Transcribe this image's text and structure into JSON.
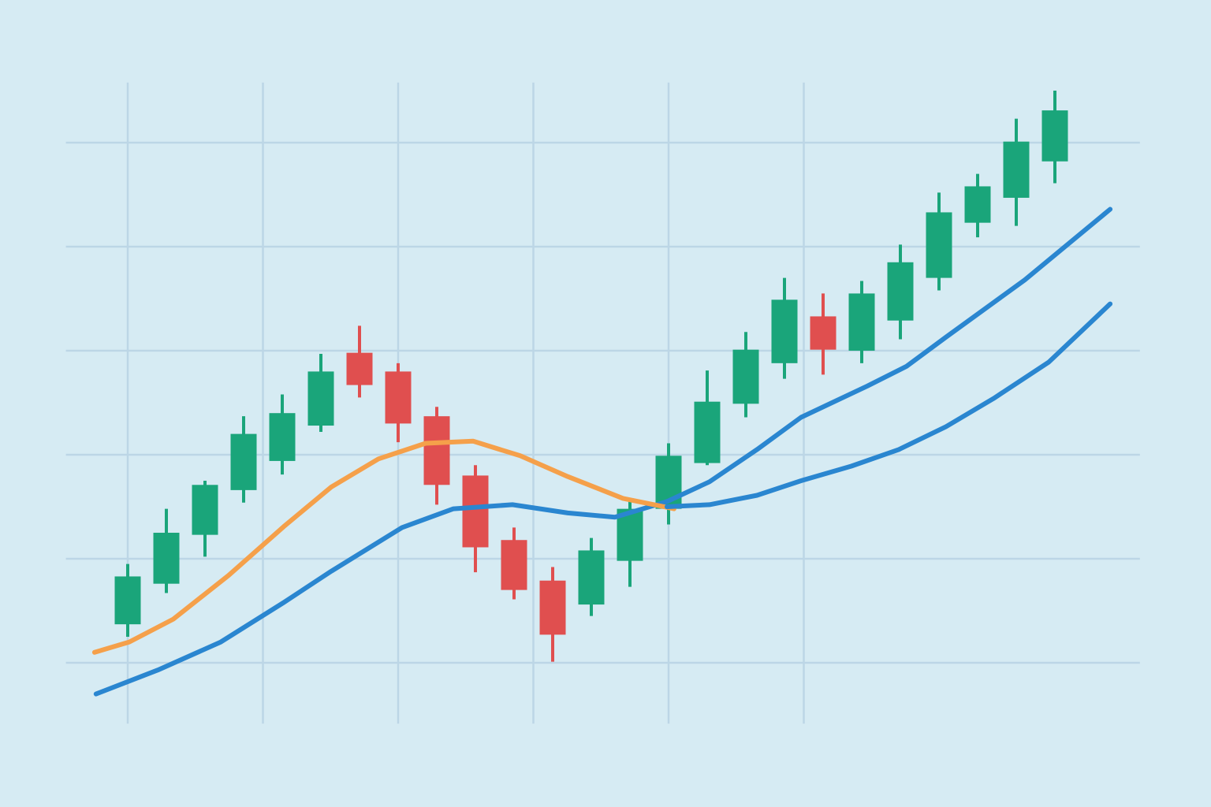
{
  "chart_data": {
    "type": "candlestick",
    "x": [
      0,
      1,
      2,
      3,
      4,
      5,
      6,
      7,
      8,
      9,
      10,
      11,
      12,
      13,
      14,
      15,
      16,
      17,
      18,
      19,
      20,
      21,
      22,
      23,
      24
    ],
    "open": [
      0.37,
      0.76,
      1.23,
      1.66,
      1.94,
      2.28,
      2.98,
      2.8,
      2.37,
      1.8,
      1.18,
      0.79,
      0.56,
      0.98,
      1.48,
      1.92,
      2.49,
      2.88,
      3.33,
      3.0,
      3.29,
      3.7,
      4.23,
      4.47,
      4.82
    ],
    "high": [
      0.95,
      1.48,
      1.75,
      2.37,
      2.58,
      2.97,
      3.24,
      2.88,
      2.46,
      1.9,
      1.3,
      0.92,
      1.2,
      1.58,
      2.11,
      2.81,
      3.18,
      3.7,
      3.55,
      3.67,
      4.02,
      4.52,
      4.7,
      5.23,
      5.5
    ],
    "low": [
      0.25,
      0.67,
      1.02,
      1.54,
      1.81,
      2.22,
      2.55,
      2.12,
      1.52,
      0.87,
      0.61,
      0.01,
      0.45,
      0.73,
      1.33,
      1.9,
      2.36,
      2.73,
      2.77,
      2.88,
      3.11,
      3.58,
      4.09,
      4.2,
      4.61
    ],
    "close": [
      0.83,
      1.25,
      1.71,
      2.2,
      2.4,
      2.8,
      2.67,
      2.3,
      1.71,
      1.11,
      0.7,
      0.27,
      1.08,
      1.48,
      1.99,
      2.51,
      3.01,
      3.49,
      3.01,
      3.55,
      3.85,
      4.33,
      4.58,
      5.01,
      5.31
    ],
    "up_color": "#1aa57a",
    "down_color": "#e04f4f",
    "series": [
      {
        "color": "#2a86d0",
        "x": [
          -0.82,
          0.78,
          2.41,
          4.04,
          5.27,
          7.1,
          8.43,
          9.96,
          11.39,
          12.61,
          13.96,
          15.06,
          16.29,
          17.43,
          19.14,
          20.16,
          21.18,
          23.22,
          25.43
        ],
        "values": [
          -0.3,
          -0.07,
          0.2,
          0.58,
          0.88,
          1.3,
          1.48,
          1.52,
          1.44,
          1.4,
          1.55,
          1.74,
          2.05,
          2.36,
          2.66,
          2.85,
          3.13,
          3.68,
          4.36
        ]
      },
      {
        "color": "#f5a04a",
        "x": [
          -0.86,
          0.04,
          1.18,
          2.61,
          4.04,
          5.27,
          6.49,
          7.71,
          8.94,
          10.16,
          11.39,
          12.82,
          14.14
        ],
        "values": [
          0.1,
          0.2,
          0.42,
          0.84,
          1.31,
          1.69,
          1.96,
          2.11,
          2.13,
          1.99,
          1.79,
          1.58,
          1.48
        ]
      },
      {
        "color": "#2a86d0",
        "x": [
          13.96,
          15.06,
          16.29,
          17.43,
          18.73,
          19.96,
          21.18,
          22.41,
          23.84,
          25.43
        ],
        "values": [
          1.5,
          1.52,
          1.61,
          1.75,
          1.89,
          2.05,
          2.27,
          2.54,
          2.89,
          3.45
        ]
      }
    ],
    "xlim": [
      -1.6,
      26.2
    ],
    "ylim": [
      -0.6,
      5.6
    ],
    "xticks": [
      0,
      3.5,
      7,
      10.5,
      14,
      17.5
    ],
    "yticks": [
      0,
      1,
      2,
      3,
      4,
      5
    ],
    "grid": true
  }
}
